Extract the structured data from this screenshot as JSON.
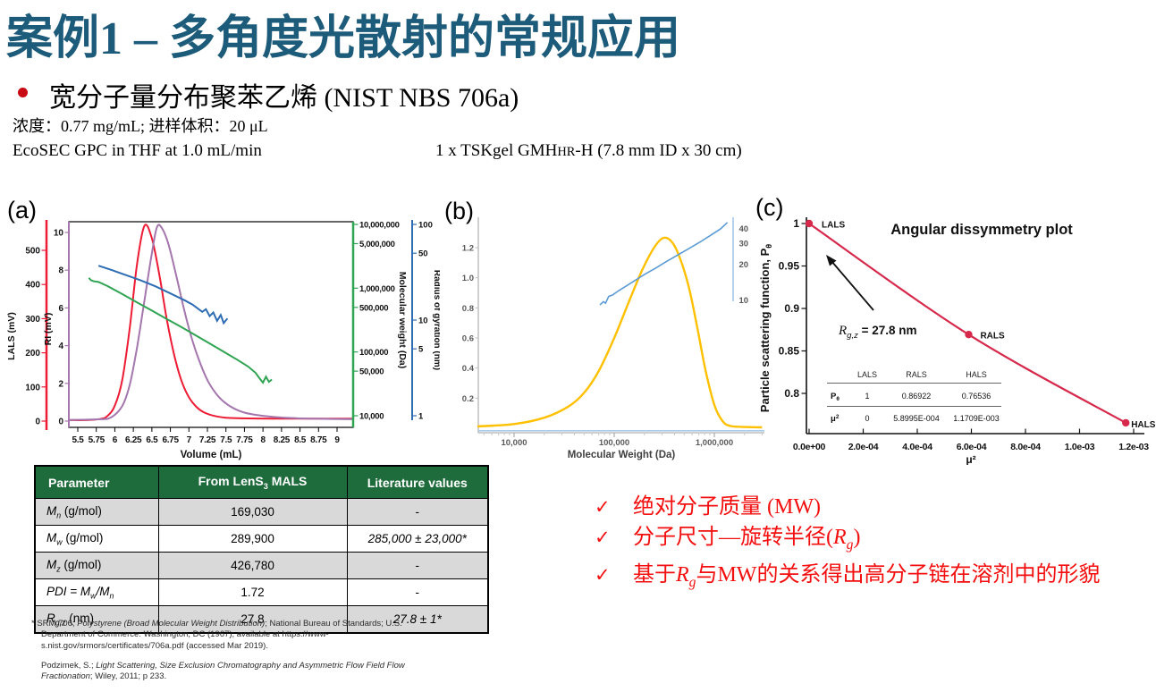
{
  "header": {
    "title": "案例1 – 多角度光散射的常规应用",
    "sample": "宽分子量分布聚苯乙烯 (NIST NBS 706a)",
    "conditions": "浓度：0.77 mg/mL; 进样体积：20 μL",
    "method": "EcoSEC GPC in THF at 1.0 mL/min",
    "column": {
      "pre": "1 x TSKgel GMH",
      "smallcap": "HR",
      "post": "-H (7.8 mm ID x 30 cm)"
    }
  },
  "colors": {
    "title_teal": "#1D5B7A",
    "accent_red": "#F40F0F",
    "table_header_green": "#1E6B3C",
    "row_gray": "#D9D9D9",
    "lals_red": "#ED1B34",
    "ri_purple": "#A476AD",
    "mw_green": "#2FA452",
    "rg_blue": "#2E6DB4",
    "dist_yellow": "#FFC000",
    "conf_lightblue": "#5B9BD5",
    "dissym_red": "#D6294B"
  },
  "chart_data": [
    {
      "id": "a",
      "tag": "(a)",
      "type": "line",
      "xlabel": "Volume (mL)",
      "x_ticks": [
        "5.5",
        "5.75",
        "6",
        "6.25",
        "6.5",
        "6.75",
        "7",
        "7.25",
        "7.5",
        "7.75",
        "8",
        "8.25",
        "8.5",
        "8.75",
        "9"
      ],
      "axes": {
        "lals": {
          "label": "LALS (mV)",
          "ticks": [
            0,
            100,
            200,
            300,
            400,
            500
          ],
          "scale": "linear",
          "color": "#ED1B34"
        },
        "ri": {
          "label": "RI (mV)",
          "ticks": [
            0,
            2,
            4,
            6,
            8,
            10
          ],
          "scale": "linear",
          "color": "#A476AD"
        },
        "mw": {
          "label": "Molecular weight (Da)",
          "ticks": [
            "10,000,000",
            "5,000,000",
            "1,000,000",
            "500,000",
            "100,000",
            "50,000",
            "10,000"
          ],
          "scale": "log",
          "color": "#2FA452"
        },
        "rg": {
          "label": "Radius of gyration (nm)",
          "ticks": [
            "100",
            "50",
            "10",
            "5",
            "1"
          ],
          "scale": "log",
          "color": "#2E6DB4"
        }
      },
      "series": [
        {
          "name": "LALS",
          "axis": "lals",
          "color": "#ED1B34",
          "smooth": true,
          "points": [
            [
              5.38,
              3
            ],
            [
              5.6,
              3
            ],
            [
              5.8,
              6
            ],
            [
              5.9,
              15
            ],
            [
              6.0,
              45
            ],
            [
              6.1,
              120
            ],
            [
              6.2,
              270
            ],
            [
              6.3,
              460
            ],
            [
              6.4,
              572
            ],
            [
              6.5,
              535
            ],
            [
              6.6,
              430
            ],
            [
              6.7,
              300
            ],
            [
              6.8,
              195
            ],
            [
              6.9,
              118
            ],
            [
              7.0,
              70
            ],
            [
              7.1,
              42
            ],
            [
              7.2,
              26
            ],
            [
              7.35,
              15
            ],
            [
              7.5,
              10
            ],
            [
              7.7,
              8
            ],
            [
              8.1,
              7
            ],
            [
              8.6,
              7
            ],
            [
              9.22,
              7
            ]
          ]
        },
        {
          "name": "RI",
          "axis": "ri",
          "color": "#A476AD",
          "smooth": true,
          "points": [
            [
              5.38,
              0.06
            ],
            [
              5.8,
              0.1
            ],
            [
              5.95,
              0.2
            ],
            [
              6.1,
              0.8
            ],
            [
              6.2,
              1.9
            ],
            [
              6.3,
              3.9
            ],
            [
              6.4,
              6.4
            ],
            [
              6.5,
              8.9
            ],
            [
              6.57,
              10.3
            ],
            [
              6.64,
              10.2
            ],
            [
              6.73,
              9.3
            ],
            [
              6.83,
              7.7
            ],
            [
              6.93,
              6.0
            ],
            [
              7.03,
              4.5
            ],
            [
              7.13,
              3.3
            ],
            [
              7.26,
              2.1
            ],
            [
              7.4,
              1.3
            ],
            [
              7.55,
              0.8
            ],
            [
              7.75,
              0.45
            ],
            [
              8.0,
              0.28
            ],
            [
              8.3,
              0.18
            ],
            [
              8.7,
              0.13
            ],
            [
              9.22,
              0.1
            ]
          ]
        },
        {
          "name": "Molecular weight",
          "axis": "mw",
          "color": "#2FA452",
          "smooth": false,
          "points": [
            [
              5.65,
              1450000
            ],
            [
              5.68,
              1330000
            ],
            [
              5.72,
              1280000
            ],
            [
              5.78,
              1250000
            ],
            [
              5.9,
              1080000
            ],
            [
              6.1,
              810000
            ],
            [
              6.3,
              600000
            ],
            [
              6.5,
              445000
            ],
            [
              6.7,
              330000
            ],
            [
              6.9,
              245000
            ],
            [
              7.1,
              180000
            ],
            [
              7.3,
              132000
            ],
            [
              7.5,
              96000
            ],
            [
              7.65,
              76000
            ],
            [
              7.8,
              59000
            ],
            [
              7.9,
              47000
            ],
            [
              7.95,
              39000
            ],
            [
              8.0,
              33000
            ],
            [
              8.04,
              41000
            ],
            [
              8.08,
              34000
            ],
            [
              8.12,
              37000
            ]
          ]
        },
        {
          "name": "Radius of gyration",
          "axis": "rg",
          "color": "#2E6DB4",
          "smooth": false,
          "points": [
            [
              5.78,
              37
            ],
            [
              5.95,
              33.5
            ],
            [
              6.15,
              29.5
            ],
            [
              6.35,
              26
            ],
            [
              6.55,
              22.5
            ],
            [
              6.75,
              19
            ],
            [
              6.95,
              16
            ],
            [
              7.05,
              14.5
            ],
            [
              7.12,
              13.2
            ],
            [
              7.18,
              12.2
            ],
            [
              7.23,
              13
            ],
            [
              7.28,
              11
            ],
            [
              7.33,
              12
            ],
            [
              7.38,
              9.8
            ],
            [
              7.43,
              11.3
            ],
            [
              7.47,
              9.3
            ],
            [
              7.52,
              10.4
            ]
          ]
        }
      ]
    },
    {
      "id": "b",
      "tag": "(b)",
      "type": "line",
      "xlabel": "Molecular Weight (Da)",
      "x_ticks": [
        "10,000",
        "100,000",
        "1,000,000"
      ],
      "y_ticks": [
        "0.2",
        "0.4",
        "0.6",
        "0.8",
        "1.0",
        "1.2"
      ],
      "rg_ticks": [
        "40",
        "30",
        "20",
        "10"
      ],
      "series": [
        {
          "name": "MW distribution",
          "color": "#FFC000",
          "smooth": true,
          "points": [
            [
              4300,
              0.012
            ],
            [
              10000,
              0.028
            ],
            [
              20000,
              0.07
            ],
            [
              35000,
              0.145
            ],
            [
              50000,
              0.235
            ],
            [
              70000,
              0.38
            ],
            [
              100000,
              0.6
            ],
            [
              140000,
              0.84
            ],
            [
              190000,
              1.05
            ],
            [
              250000,
              1.2
            ],
            [
              310000,
              1.265
            ],
            [
              380000,
              1.235
            ],
            [
              460000,
              1.12
            ],
            [
              560000,
              0.93
            ],
            [
              680000,
              0.66
            ],
            [
              820000,
              0.38
            ],
            [
              1000000,
              0.155
            ],
            [
              1200000,
              0.05
            ],
            [
              1450000,
              0.015
            ],
            [
              2200000,
              0.008
            ],
            [
              3000000,
              0.006
            ]
          ]
        },
        {
          "name": "Rg vs MW conformation",
          "color": "#5B9BD5",
          "smooth": false,
          "points": [
            [
              72000,
              9.0
            ],
            [
              78000,
              9.6
            ],
            [
              82000,
              9.3
            ],
            [
              88000,
              10.6
            ],
            [
              96000,
              10.9
            ],
            [
              110000,
              11.8
            ],
            [
              130000,
              12.9
            ],
            [
              160000,
              14.4
            ],
            [
              200000,
              16.2
            ],
            [
              260000,
              18.4
            ],
            [
              330000,
              20.8
            ],
            [
              420000,
              23.4
            ],
            [
              540000,
              26.4
            ],
            [
              700000,
              30
            ],
            [
              900000,
              34.3
            ],
            [
              1150000,
              39.2
            ],
            [
              1350000,
              44.5
            ]
          ]
        }
      ]
    },
    {
      "id": "c",
      "tag": "(c)",
      "type": "scatter",
      "title": "Angular dissymmetry plot",
      "xlabel": "μ²",
      "ylabel": "Particle scattering function, P",
      "ylabel_sub": "θ",
      "x_ticks": [
        "0.0e+00",
        "2.0e-04",
        "4.0e-04",
        "6.0e-04",
        "8.0e-04",
        "1.0e-03",
        "1.2e-03"
      ],
      "y_ticks": [
        "1",
        "0.95",
        "0.9",
        "0.85",
        "0.8"
      ],
      "line_color": "#D6294B",
      "points": [
        {
          "label": "LALS",
          "x": 0,
          "y": 1
        },
        {
          "label": "RALS",
          "x": 0.00058995,
          "y": 0.86922
        },
        {
          "label": "HALS",
          "x": 0.0011709,
          "y": 0.76536
        }
      ],
      "annotation": {
        "pre": "R",
        "sub": "g,z",
        "post": " = 27.8 nm"
      },
      "inset_table": {
        "col_headers": [
          "LALS",
          "RALS",
          "HALS"
        ],
        "rows": [
          {
            "label": "P",
            "label_sub": "θ",
            "values": [
              "1",
              "0.86922",
              "0.76536"
            ]
          },
          {
            "label": "μ",
            "label_sup": "2",
            "values": [
              "0",
              "5.8995E-004",
              "1.1709E-003"
            ]
          }
        ]
      }
    }
  ],
  "table": {
    "headers": [
      {
        "segments": [
          {
            "t": "Parameter"
          }
        ]
      },
      {
        "segments": [
          {
            "t": "From LenS"
          },
          {
            "t": "3",
            "sub": true
          },
          {
            "t": " MALS"
          }
        ]
      },
      {
        "segments": [
          {
            "t": "Literature values"
          }
        ]
      }
    ],
    "rows": [
      {
        "param": [
          {
            "t": "M",
            "i": true
          },
          {
            "t": "n",
            "sub": true,
            "i": true
          },
          {
            "t": " (g/mol)"
          }
        ],
        "mals": "169,030",
        "lit": [
          {
            "t": "-"
          }
        ]
      },
      {
        "param": [
          {
            "t": "M",
            "i": true
          },
          {
            "t": "w",
            "sub": true,
            "i": true
          },
          {
            "t": " (g/mol)"
          }
        ],
        "mals": "289,900",
        "lit": [
          {
            "t": "285,000 ± 23,000*",
            "i": true
          }
        ]
      },
      {
        "param": [
          {
            "t": "M",
            "i": true
          },
          {
            "t": "z",
            "sub": true,
            "i": true
          },
          {
            "t": " (g/mol)"
          }
        ],
        "mals": "426,780",
        "lit": [
          {
            "t": "-"
          }
        ]
      },
      {
        "param": [
          {
            "t": "PDI = M",
            "i": true
          },
          {
            "t": "w",
            "sub": true,
            "i": true
          },
          {
            "t": "/M",
            "i": true
          },
          {
            "t": "n",
            "sub": true,
            "i": true
          }
        ],
        "mals": "1.72",
        "lit": [
          {
            "t": "-"
          }
        ]
      },
      {
        "param": [
          {
            "t": "R",
            "i": true
          },
          {
            "t": "g,z",
            "sub": true,
            "i": true
          },
          {
            "t": " (nm)"
          }
        ],
        "mals": "27.8",
        "lit": [
          {
            "t": "27.8 ± 1*",
            "i": true
          }
        ]
      }
    ]
  },
  "footnotes": [
    {
      "hang": true,
      "segments": [
        {
          "t": "* SRM 706; "
        },
        {
          "t": "Polystyrene (Broad Molecular Weight Distribution)",
          "i": true
        },
        {
          "t": "; National Bureau of Standards; U.S. Department of Commerce: Washington, DC (1967); available at https://www-s.nist.gov/srmors/certificates/706a.pdf (accessed Mar 2019)."
        }
      ]
    },
    {
      "hang": false,
      "segments": [
        {
          "t": "Podzimek, S.; "
        },
        {
          "t": "Light Scattering, Size Exclusion Chromatography and Asymmetric Flow Field Flow Fractionation",
          "i": true
        },
        {
          "t": "; Wiley, 2011; p 233."
        }
      ]
    }
  ],
  "key_points": {
    "check_glyph": "✓",
    "items": [
      [
        {
          "t": "绝对分子质量 (MW)"
        }
      ],
      [
        {
          "t": "分子尺寸—旋转半径("
        },
        {
          "t": "R",
          "i": true
        },
        {
          "t": "g",
          "sub": true,
          "i": true
        },
        {
          "t": ")"
        }
      ],
      [
        {
          "t": "基于"
        },
        {
          "t": "R",
          "i": true
        },
        {
          "t": "g",
          "sub": true,
          "i": true
        },
        {
          "t": "与MW的关系得出高分子链在溶剂中的形貌"
        }
      ]
    ]
  }
}
